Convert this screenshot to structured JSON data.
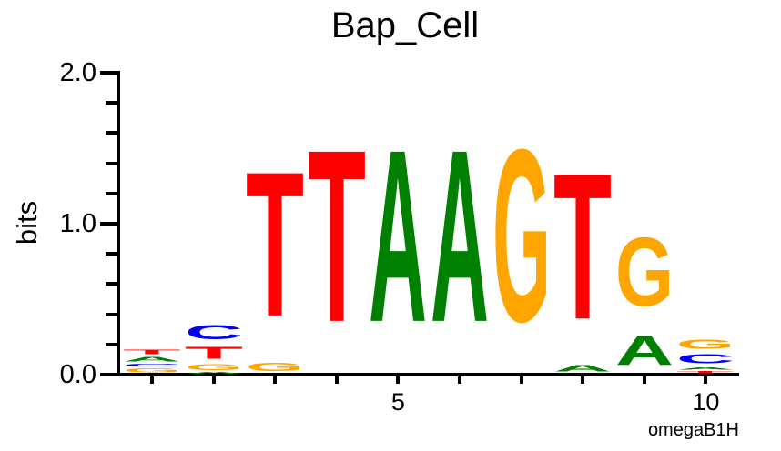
{
  "title": "Bap_Cell",
  "chart_data": {
    "type": "bar",
    "subtype": "sequence_logo",
    "title": "Bap_Cell",
    "ylabel": "bits",
    "xlabel": "",
    "x_axis_right_label": "omegaB1H",
    "ylim": [
      0,
      2
    ],
    "grid": false,
    "y_major_ticks": [
      {
        "value": 0.0,
        "label": "0.0"
      },
      {
        "value": 1.0,
        "label": "1.0"
      },
      {
        "value": 2.0,
        "label": "2.0"
      }
    ],
    "y_minor_tick_step": 0.2,
    "x_positions": [
      1,
      2,
      3,
      4,
      5,
      6,
      7,
      8,
      9,
      10
    ],
    "x_tick_labels": [
      {
        "position": 5,
        "label": "5"
      },
      {
        "position": 10,
        "label": "10"
      }
    ],
    "colors": {
      "A": "#008000",
      "C": "#0000EE",
      "G": "#FFA500",
      "T": "#FF0000"
    },
    "columns": [
      {
        "position": 1,
        "stack": [
          {
            "base": "G",
            "bits": 0.04
          },
          {
            "base": "C",
            "bits": 0.03
          },
          {
            "base": "A",
            "bits": 0.05
          },
          {
            "base": "T",
            "bits": 0.05
          }
        ]
      },
      {
        "position": 2,
        "stack": [
          {
            "base": "A",
            "bits": 0.015
          },
          {
            "base": "G",
            "bits": 0.06
          },
          {
            "base": "T",
            "bits": 0.125
          },
          {
            "base": "C",
            "bits": 0.15
          }
        ]
      },
      {
        "position": 3,
        "stack": [
          {
            "base": "G",
            "bits": 0.09
          },
          {
            "base": "T",
            "bits": 1.53
          }
        ]
      },
      {
        "position": 4,
        "stack": [
          {
            "base": "T",
            "bits": 1.82
          }
        ]
      },
      {
        "position": 5,
        "stack": [
          {
            "base": "A",
            "bits": 1.82
          }
        ]
      },
      {
        "position": 6,
        "stack": [
          {
            "base": "A",
            "bits": 1.82
          }
        ]
      },
      {
        "position": 7,
        "stack": [
          {
            "base": "G",
            "bits": 1.83
          }
        ]
      },
      {
        "position": 8,
        "stack": [
          {
            "base": "A",
            "bits": 0.07
          },
          {
            "base": "T",
            "bits": 1.55
          }
        ]
      },
      {
        "position": 9,
        "stack": [
          {
            "base": "A",
            "bits": 0.31
          },
          {
            "base": "G",
            "bits": 0.73
          }
        ]
      },
      {
        "position": 10,
        "stack": [
          {
            "base": "T",
            "bits": 0.025
          },
          {
            "base": "A",
            "bits": 0.025
          },
          {
            "base": "C",
            "bits": 0.1
          },
          {
            "base": "G",
            "bits": 0.1
          }
        ]
      }
    ]
  }
}
